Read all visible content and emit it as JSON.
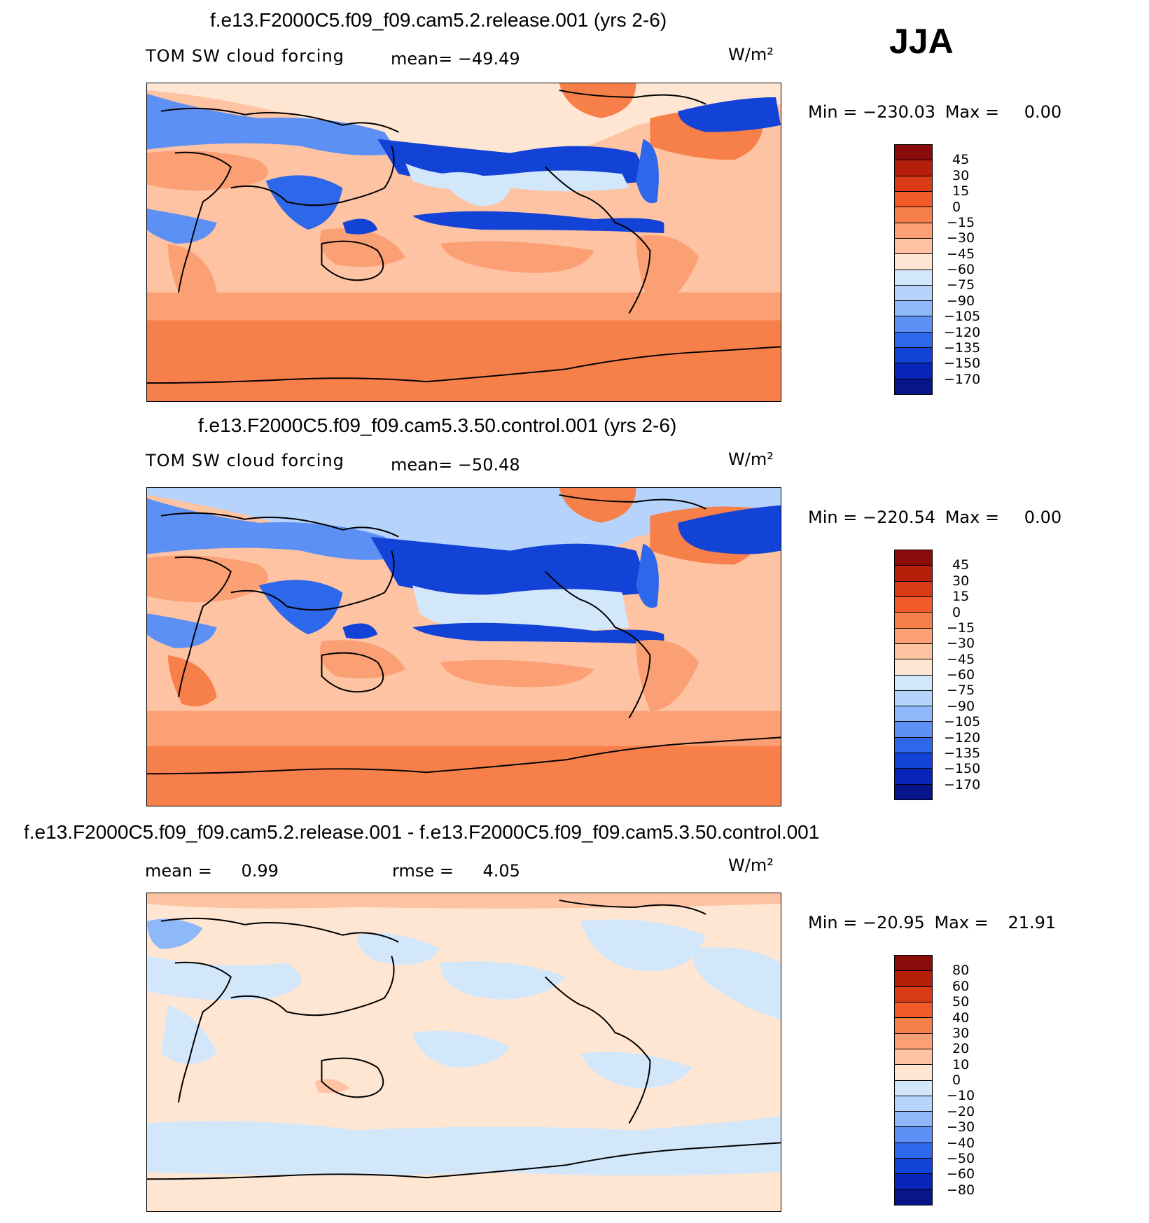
{
  "season": "JJA",
  "units": "W/m²",
  "panels": [
    {
      "id": "p1",
      "title": "f.e13.F2000C5.f09_f09.cam5.2.release.001 (yrs 2-6)",
      "variable": "TOM SW cloud forcing",
      "stat_label": "mean=",
      "stat_value": "−49.49",
      "min_label": "Min =",
      "min_value": "−230.03",
      "max_label": "Max =",
      "max_value": "0.00",
      "colorbar": {
        "labels": [
          "45",
          "30",
          "15",
          "0",
          "−15",
          "−30",
          "−45",
          "−60",
          "−75",
          "−90",
          "−105",
          "−120",
          "−135",
          "−150",
          "−170"
        ],
        "colors": [
          "#8b0a0a",
          "#b51f0a",
          "#d83a16",
          "#f25a2a",
          "#f7804a",
          "#fb9f74",
          "#fdc3a3",
          "#fee6d2",
          "#d3e7fb",
          "#b5d3fb",
          "#8fb8fb",
          "#5d90f5",
          "#2e68ea",
          "#1342d6",
          "#0625b8",
          "#07148a"
        ]
      }
    },
    {
      "id": "p2",
      "title": "f.e13.F2000C5.f09_f09.cam5.3.50.control.001 (yrs 2-6)",
      "variable": "TOM SW cloud forcing",
      "stat_label": "mean=",
      "stat_value": "−50.48",
      "min_label": "Min =",
      "min_value": "−220.54",
      "max_label": "Max =",
      "max_value": "0.00",
      "colorbar": {
        "labels": [
          "45",
          "30",
          "15",
          "0",
          "−15",
          "−30",
          "−45",
          "−60",
          "−75",
          "−90",
          "−105",
          "−120",
          "−135",
          "−150",
          "−170"
        ],
        "colors": [
          "#8b0a0a",
          "#b51f0a",
          "#d83a16",
          "#f25a2a",
          "#f7804a",
          "#fb9f74",
          "#fdc3a3",
          "#fee6d2",
          "#d3e7fb",
          "#b5d3fb",
          "#8fb8fb",
          "#5d90f5",
          "#2e68ea",
          "#1342d6",
          "#0625b8",
          "#07148a"
        ]
      }
    },
    {
      "id": "p3",
      "title": "f.e13.F2000C5.f09_f09.cam5.2.release.001 - f.e13.F2000C5.f09_f09.cam5.3.50.control.001",
      "mean_label": "mean =",
      "mean_value": "0.99",
      "rmse_label": "rmse =",
      "rmse_value": "4.05",
      "min_label": "Min =",
      "min_value": "−20.95",
      "max_label": "Max =",
      "max_value": "21.91",
      "colorbar": {
        "labels": [
          "80",
          "60",
          "50",
          "40",
          "30",
          "20",
          "10",
          "0",
          "−10",
          "−20",
          "−30",
          "−40",
          "−50",
          "−60",
          "−80"
        ],
        "colors": [
          "#8b0a0a",
          "#b51f0a",
          "#d83a16",
          "#f25a2a",
          "#f7804a",
          "#fb9f74",
          "#fdc3a3",
          "#fee6d2",
          "#d3e7fb",
          "#b5d3fb",
          "#8fb8fb",
          "#5d90f5",
          "#2e68ea",
          "#1342d6",
          "#0625b8",
          "#07148a"
        ]
      }
    }
  ]
}
